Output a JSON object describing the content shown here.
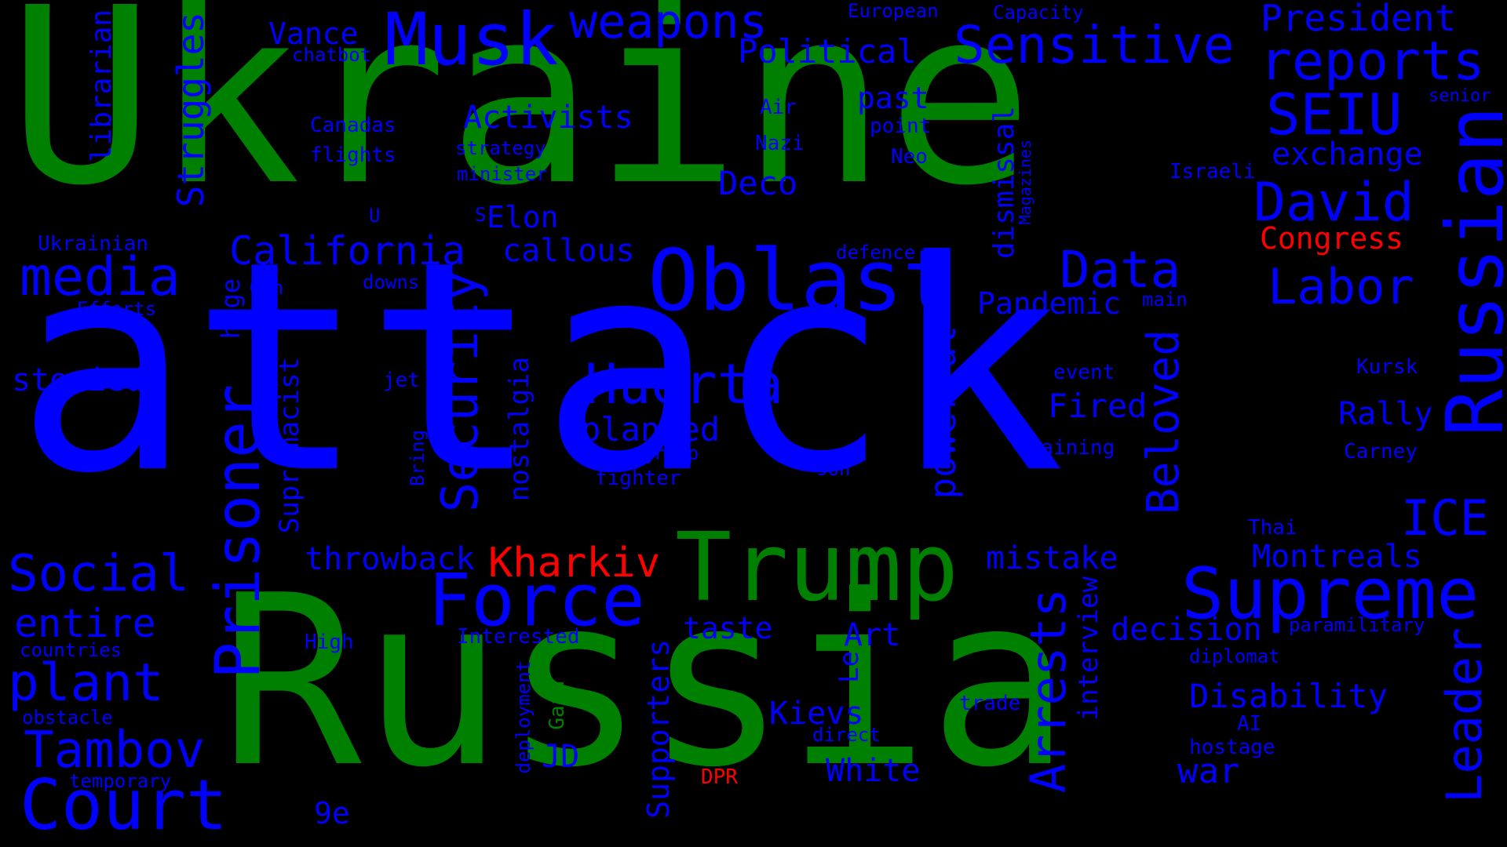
{
  "colors": {
    "background": "#000000",
    "green": "#008000",
    "blue": "#0000ff",
    "red": "#ff0000"
  },
  "words": [
    {
      "text": "attack",
      "color": "#0000ff"
    },
    {
      "text": "Ukraine",
      "color": "#008000"
    },
    {
      "text": "Russia",
      "color": "#008000"
    },
    {
      "text": "Trump",
      "color": "#008000"
    },
    {
      "text": "Oblast",
      "color": "#0000ff"
    },
    {
      "text": "Russian",
      "color": "#0000ff"
    },
    {
      "text": "Supreme",
      "color": "#0000ff"
    },
    {
      "text": "Musk",
      "color": "#0000ff"
    },
    {
      "text": "Force",
      "color": "#0000ff"
    },
    {
      "text": "Prisoner",
      "color": "#0000ff"
    },
    {
      "text": "Security",
      "color": "#0000ff"
    },
    {
      "text": "Court",
      "color": "#0000ff"
    },
    {
      "text": "Sensitive",
      "color": "#0000ff"
    },
    {
      "text": "reports",
      "color": "#0000ff"
    },
    {
      "text": "Huerta",
      "color": "#0000ff"
    },
    {
      "text": "weapons",
      "color": "#0000ff"
    },
    {
      "text": "David",
      "color": "#0000ff"
    },
    {
      "text": "SEIU",
      "color": "#0000ff"
    },
    {
      "text": "Labor",
      "color": "#0000ff"
    },
    {
      "text": "Data",
      "color": "#0000ff"
    },
    {
      "text": "media",
      "color": "#0000ff"
    },
    {
      "text": "Social",
      "color": "#0000ff"
    },
    {
      "text": "plant",
      "color": "#0000ff"
    },
    {
      "text": "Tambov",
      "color": "#0000ff"
    },
    {
      "text": "California",
      "color": "#0000ff"
    },
    {
      "text": "President",
      "color": "#0000ff"
    },
    {
      "text": "Beloved",
      "color": "#0000ff"
    },
    {
      "text": "Arrests",
      "color": "#0000ff"
    },
    {
      "text": "Leader",
      "color": "#0000ff"
    },
    {
      "text": "ICE",
      "color": "#0000ff"
    },
    {
      "text": "Kharkiv",
      "color": "#ff0000"
    },
    {
      "text": "entire",
      "color": "#0000ff"
    },
    {
      "text": "Struggles",
      "color": "#0000ff"
    },
    {
      "text": "powerful",
      "color": "#0000ff"
    },
    {
      "text": "Activists",
      "color": "#0000ff"
    },
    {
      "text": "Political",
      "color": "#0000ff"
    },
    {
      "text": "exchange",
      "color": "#0000ff"
    },
    {
      "text": "Disability",
      "color": "#0000ff"
    },
    {
      "text": "Montreals",
      "color": "#0000ff"
    },
    {
      "text": "throwback",
      "color": "#0000ff"
    },
    {
      "text": "planned",
      "color": "#0000ff"
    },
    {
      "text": "mistake",
      "color": "#0000ff"
    },
    {
      "text": "decision",
      "color": "#0000ff"
    },
    {
      "text": "Pandemic",
      "color": "#0000ff"
    },
    {
      "text": "Congress",
      "color": "#ff0000"
    },
    {
      "text": "callous",
      "color": "#0000ff"
    },
    {
      "text": "Deco",
      "color": "#0000ff"
    },
    {
      "text": "Fired",
      "color": "#0000ff"
    },
    {
      "text": "Rally",
      "color": "#0000ff"
    },
    {
      "text": "storied",
      "color": "#0000ff"
    },
    {
      "text": "taste",
      "color": "#0000ff"
    },
    {
      "text": "Kievs",
      "color": "#0000ff"
    },
    {
      "text": "White",
      "color": "#0000ff"
    },
    {
      "text": "war",
      "color": "#0000ff"
    },
    {
      "text": "Art",
      "color": "#0000ff"
    },
    {
      "text": "Elon",
      "color": "#0000ff"
    },
    {
      "text": "Vance",
      "color": "#0000ff"
    },
    {
      "text": "past",
      "color": "#0000ff"
    },
    {
      "text": "JD",
      "color": "#0000ff"
    },
    {
      "text": "9e",
      "color": "#0000ff"
    },
    {
      "text": "Supremacist",
      "color": "#0000ff"
    },
    {
      "text": "nostalgia",
      "color": "#0000ff"
    },
    {
      "text": "Supporters",
      "color": "#0000ff"
    },
    {
      "text": "librarian",
      "color": "#0000ff"
    },
    {
      "text": "dismissal",
      "color": "#0000ff"
    },
    {
      "text": "interview",
      "color": "#0000ff"
    },
    {
      "text": "huge",
      "color": "#0000ff"
    },
    {
      "text": "Le",
      "color": "#0000ff"
    },
    {
      "text": "European",
      "color": "#0000ff"
    },
    {
      "text": "Capacity",
      "color": "#0000ff"
    },
    {
      "text": "chatbot",
      "color": "#0000ff"
    },
    {
      "text": "senior",
      "color": "#0000ff"
    },
    {
      "text": "Air",
      "color": "#0000ff"
    },
    {
      "text": "point",
      "color": "#0000ff"
    },
    {
      "text": "Canadas",
      "color": "#0000ff"
    },
    {
      "text": "strategy",
      "color": "#0000ff"
    },
    {
      "text": "Nazi",
      "color": "#0000ff"
    },
    {
      "text": "Neo",
      "color": "#0000ff"
    },
    {
      "text": "flights",
      "color": "#0000ff"
    },
    {
      "text": "minister",
      "color": "#0000ff"
    },
    {
      "text": "Israeli",
      "color": "#0000ff"
    },
    {
      "text": "Magazines",
      "color": "#0000ff"
    },
    {
      "text": "U",
      "color": "#0000ff"
    },
    {
      "text": "S",
      "color": "#0000ff"
    },
    {
      "text": "Ukrainian",
      "color": "#0000ff"
    },
    {
      "text": "defence",
      "color": "#0000ff"
    },
    {
      "text": "Gun",
      "color": "#0000ff"
    },
    {
      "text": "downs",
      "color": "#0000ff"
    },
    {
      "text": "main",
      "color": "#0000ff"
    },
    {
      "text": "Efforts",
      "color": "#0000ff"
    },
    {
      "text": "event",
      "color": "#0000ff"
    },
    {
      "text": "Kursk",
      "color": "#0000ff"
    },
    {
      "text": "jet",
      "color": "#0000ff"
    },
    {
      "text": "training",
      "color": "#0000ff"
    },
    {
      "text": "group",
      "color": "#0000ff"
    },
    {
      "text": "son",
      "color": "#0000ff"
    },
    {
      "text": "Carney",
      "color": "#0000ff"
    },
    {
      "text": "fighter",
      "color": "#0000ff"
    },
    {
      "text": "Bring",
      "color": "#0000ff"
    },
    {
      "text": "Thai",
      "color": "#0000ff"
    },
    {
      "text": "High",
      "color": "#0000ff"
    },
    {
      "text": "Interested",
      "color": "#0000ff"
    },
    {
      "text": "paramilitary",
      "color": "#0000ff"
    },
    {
      "text": "countries",
      "color": "#0000ff"
    },
    {
      "text": "diplomat",
      "color": "#0000ff"
    },
    {
      "text": "obstacle",
      "color": "#0000ff"
    },
    {
      "text": "trade",
      "color": "#0000ff"
    },
    {
      "text": "AI",
      "color": "#0000ff"
    },
    {
      "text": "direct",
      "color": "#0000ff"
    },
    {
      "text": "hostage",
      "color": "#0000ff"
    },
    {
      "text": "temporary",
      "color": "#0000ff"
    },
    {
      "text": "DPR",
      "color": "#ff0000"
    },
    {
      "text": "Gaza",
      "color": "#008000"
    },
    {
      "text": "deployment",
      "color": "#0000ff"
    }
  ]
}
